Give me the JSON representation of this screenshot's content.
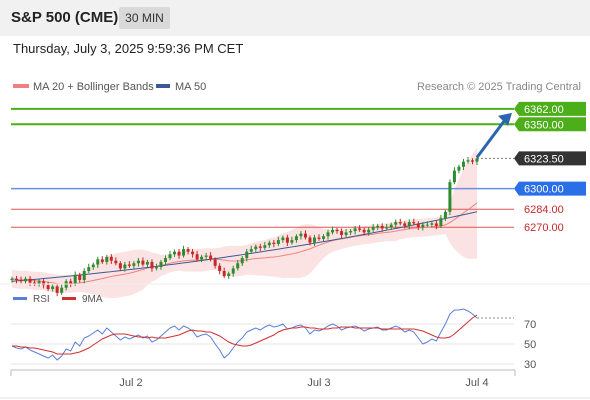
{
  "header": {
    "title": "S&P 500 (CME)",
    "timeframe": "30 MIN",
    "datetime": "Thursday, July 3, 2025 9:59:36 PM CET"
  },
  "legend": {
    "ma20_bb": "MA 20 + Bollinger Bands",
    "ma50": "MA 50",
    "source": "Research © 2025 Trading Central",
    "rsi": "RSI",
    "ma9": "9MA"
  },
  "colors": {
    "bull": "#2e8b2e",
    "bear": "#c62828",
    "ma20": "#f08080",
    "ma50": "#3b5998",
    "band_fill": "#fcdede",
    "resistance": "#4caf1a",
    "pivot": "#6b8fe0",
    "support": "#e05555",
    "arrow": "#2b64b0",
    "rsi": "#5b7fd8",
    "rsi_ma": "#d32f2f"
  },
  "chart_data": [
    {
      "type": "candlestick",
      "title": "S&P 500 (CME)",
      "y_range": [
        6215,
        6372
      ],
      "x_ticks": [
        "Jul 2",
        "Jul 3",
        "Jul 4"
      ],
      "levels": [
        {
          "value": 6362.0,
          "label": "6362.00",
          "kind": "resistance"
        },
        {
          "value": 6350.0,
          "label": "6350.00",
          "kind": "resistance"
        },
        {
          "value": 6323.5,
          "label": "6323.50",
          "kind": "last"
        },
        {
          "value": 6300.0,
          "label": "6300.00",
          "kind": "pivot"
        },
        {
          "value": 6284.0,
          "label": "6284.00",
          "kind": "support"
        },
        {
          "value": 6270.0,
          "label": "6270.00",
          "kind": "support"
        }
      ],
      "closes": [
        6230,
        6229,
        6228,
        6230,
        6227,
        6226,
        6228,
        6225,
        6222,
        6224,
        6219,
        6223,
        6228,
        6226,
        6233,
        6229,
        6236,
        6239,
        6241,
        6245,
        6243,
        6247,
        6244,
        6242,
        6238,
        6241,
        6240,
        6242,
        6244,
        6241,
        6243,
        6238,
        6239,
        6243,
        6246,
        6249,
        6251,
        6248,
        6253,
        6251,
        6249,
        6245,
        6247,
        6248,
        6245,
        6240,
        6236,
        6232,
        6234,
        6238,
        6242,
        6246,
        6251,
        6253,
        6255,
        6254,
        6256,
        6258,
        6257,
        6260,
        6262,
        6258,
        6260,
        6263,
        6265,
        6262,
        6258,
        6262,
        6261,
        6263,
        6266,
        6268,
        6267,
        6264,
        6266,
        6267,
        6269,
        6268,
        6266,
        6268,
        6270,
        6271,
        6269,
        6270,
        6272,
        6274,
        6273,
        6271,
        6274,
        6273,
        6270,
        6272,
        6272,
        6273,
        6271,
        6277,
        6282,
        6305,
        6314,
        6317,
        6321,
        6322,
        6321,
        6323.5
      ],
      "ma50_start": 6228,
      "ma50_end": 6282
    },
    {
      "type": "line",
      "title": "RSI",
      "y_range": [
        16,
        91
      ],
      "y_ticks": [
        70,
        50,
        30
      ],
      "series": [
        {
          "name": "RSI",
          "values": [
            48,
            46,
            45,
            47,
            44,
            42,
            40,
            38,
            36,
            39,
            34,
            38,
            45,
            43,
            52,
            48,
            56,
            58,
            61,
            64,
            60,
            66,
            62,
            58,
            54,
            57,
            55,
            57,
            59,
            56,
            58,
            52,
            54,
            58,
            62,
            66,
            68,
            64,
            68,
            66,
            63,
            57,
            59,
            60,
            57,
            50,
            44,
            36,
            40,
            46,
            52,
            56,
            62,
            64,
            66,
            64,
            67,
            69,
            67,
            68,
            70,
            65,
            66,
            68,
            69,
            66,
            60,
            64,
            63,
            65,
            68,
            70,
            68,
            64,
            66,
            67,
            68,
            66,
            63,
            65,
            66,
            67,
            64,
            64,
            66,
            68,
            66,
            62,
            64,
            62,
            56,
            50,
            52,
            55,
            53,
            62,
            70,
            80,
            84,
            84,
            85,
            83,
            80,
            76
          ]
        },
        {
          "name": "9MA",
          "values": [
            48,
            48,
            47,
            47,
            46,
            46,
            45,
            44,
            43,
            42,
            40,
            40,
            40,
            40,
            41,
            42,
            44,
            46,
            49,
            52,
            55,
            57,
            59,
            60,
            60,
            60,
            59,
            58,
            57,
            57,
            56,
            57,
            56,
            56,
            56,
            57,
            58,
            59,
            61,
            63,
            64,
            63,
            63,
            62,
            62,
            60,
            58,
            55,
            52,
            50,
            49,
            48,
            48,
            49,
            51,
            53,
            55,
            57,
            59,
            62,
            64,
            65,
            66,
            66,
            67,
            67,
            66,
            66,
            65,
            65,
            65,
            66,
            66,
            67,
            67,
            67,
            66,
            66,
            66,
            66,
            66,
            66,
            65,
            65,
            65,
            65,
            65,
            65,
            65,
            65,
            64,
            63,
            61,
            59,
            57,
            56,
            56,
            57,
            60,
            64,
            68,
            72,
            76,
            79
          ]
        }
      ]
    }
  ]
}
